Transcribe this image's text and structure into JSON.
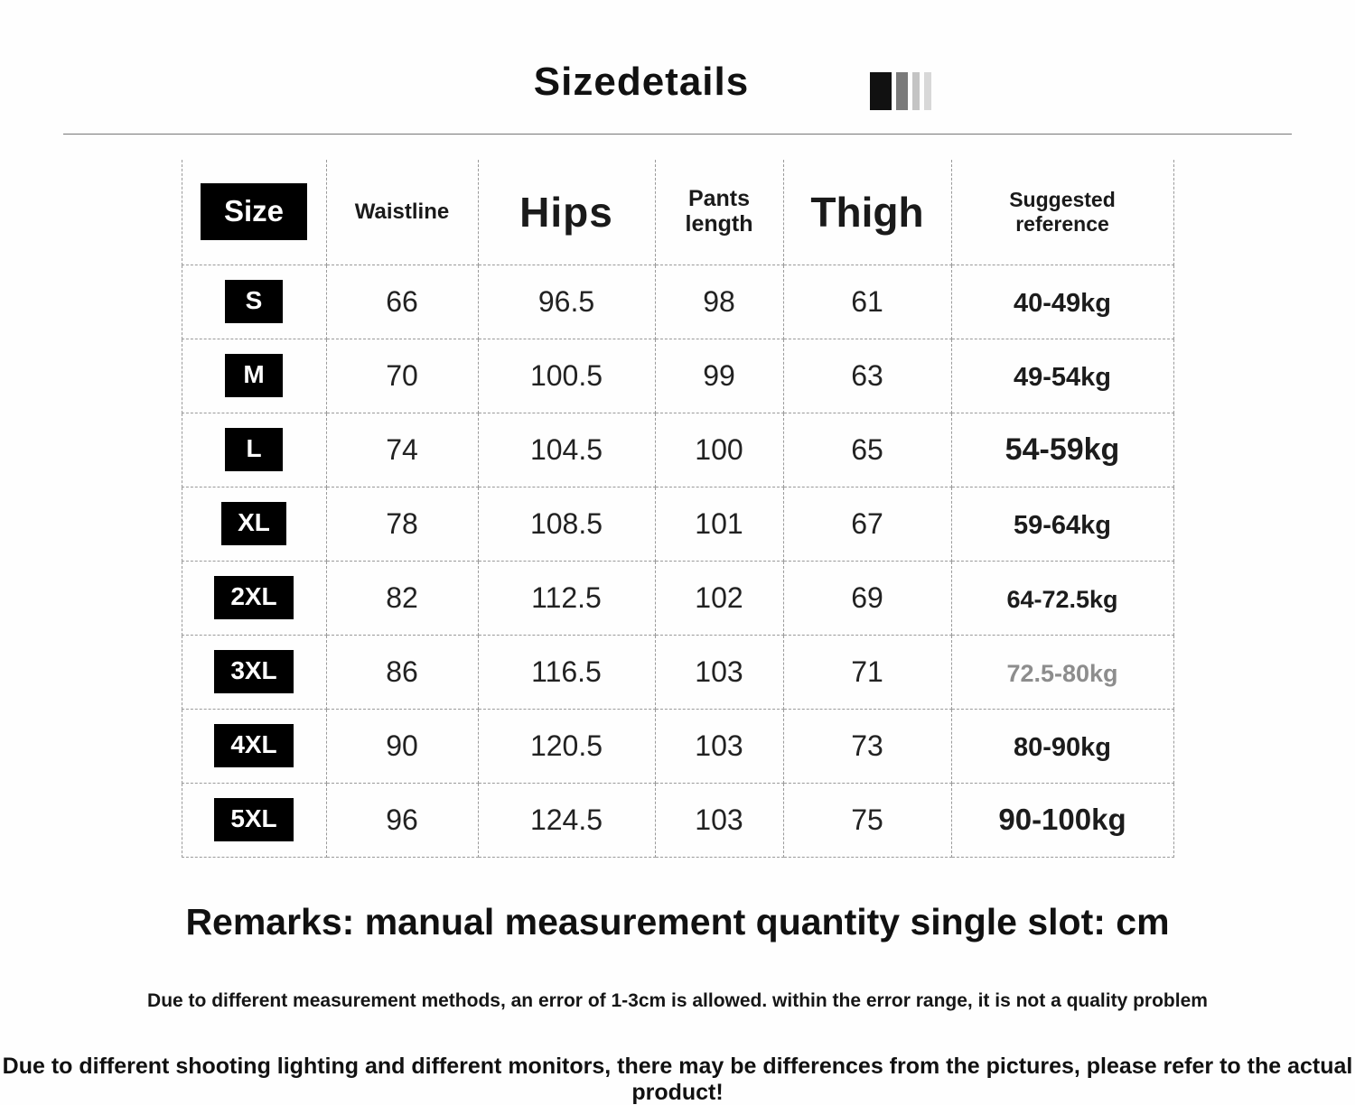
{
  "title": "Sizedetails",
  "icon": {
    "name": "color-bars-icon",
    "bar_colors": [
      "#111111",
      "#7a7a7a",
      "#c4c4c4",
      "#d8d8d8"
    ]
  },
  "colors": {
    "badge_bg": "#000000",
    "badge_text": "#ffffff",
    "muted_text": "#8d8d8d",
    "grid_dash": "#9a9a9a"
  },
  "table": {
    "headers": {
      "size": "Size",
      "waistline": "Waistline",
      "hips": "Hips",
      "pants_length": "Pants length",
      "thigh": "Thigh",
      "suggested": "Suggested reference"
    },
    "rows": [
      {
        "size": "S",
        "waistline": "66",
        "hips": "96.5",
        "pants_length": "98",
        "thigh": "61",
        "suggested": "40-49kg"
      },
      {
        "size": "M",
        "waistline": "70",
        "hips": "100.5",
        "pants_length": "99",
        "thigh": "63",
        "suggested": "49-54kg"
      },
      {
        "size": "L",
        "waistline": "74",
        "hips": "104.5",
        "pants_length": "100",
        "thigh": "65",
        "suggested": "54-59kg"
      },
      {
        "size": "XL",
        "waistline": "78",
        "hips": "108.5",
        "pants_length": "101",
        "thigh": "67",
        "suggested": "59-64kg"
      },
      {
        "size": "2XL",
        "waistline": "82",
        "hips": "112.5",
        "pants_length": "102",
        "thigh": "69",
        "suggested": "64-72.5kg"
      },
      {
        "size": "3XL",
        "waistline": "86",
        "hips": "116.5",
        "pants_length": "103",
        "thigh": "71",
        "suggested": "72.5-80kg"
      },
      {
        "size": "4XL",
        "waistline": "90",
        "hips": "120.5",
        "pants_length": "103",
        "thigh": "73",
        "suggested": "80-90kg"
      },
      {
        "size": "5XL",
        "waistline": "96",
        "hips": "124.5",
        "pants_length": "103",
        "thigh": "75",
        "suggested": "90-100kg"
      }
    ]
  },
  "remarks": "Remarks: manual measurement quantity single slot: cm",
  "note1": "Due to different measurement methods, an error of 1-3cm is allowed. within the error range, it is not a quality problem",
  "note2": "Due to different shooting lighting and different monitors, there may be differences from the pictures, please refer to the actual product!"
}
